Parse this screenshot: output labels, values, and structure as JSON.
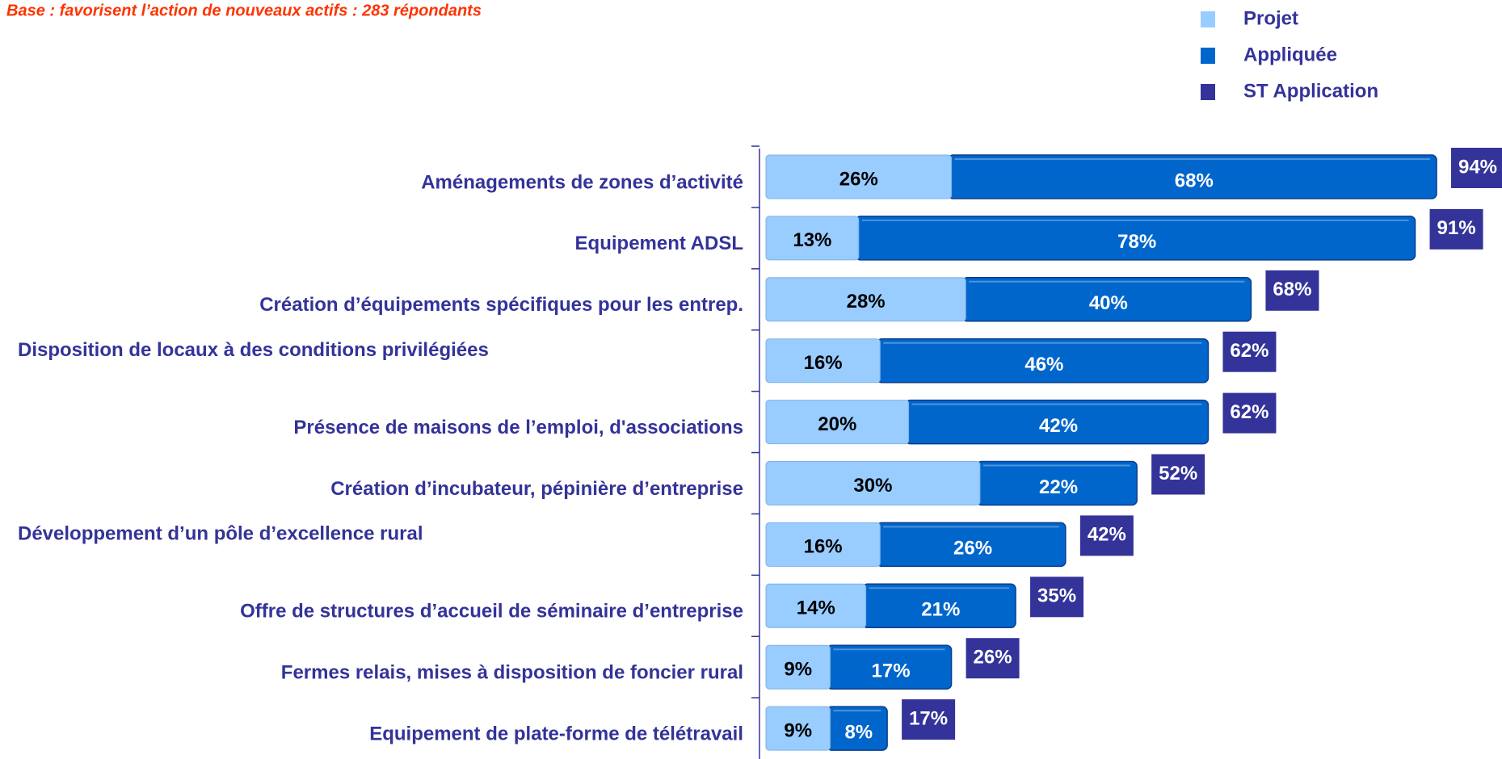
{
  "chart_data": {
    "type": "stacked-bar-horizontal",
    "subtitle": "Base : favorisent l’action de nouveaux actifs : 283 répondants",
    "categories": [
      "Aménagements de zones d’activité",
      "Equipement ADSL",
      "Création d’équipements spécifiques pour les entrep.",
      "Disposition de locaux à des conditions privilégiées",
      "Présence de maisons de l’emploi, d'associations",
      "Création d’incubateur, pépinière d’entreprise",
      "Développement d’un pôle d’excellence rural",
      "Offre de  structures d’accueil de séminaire d’entreprise",
      "Fermes relais, mises à disposition de foncier rural",
      "Equipement de plate-forme de télétravail"
    ],
    "series": [
      {
        "name": "Projet",
        "color": "#99ccff",
        "values": [
          26,
          13,
          28,
          16,
          20,
          30,
          16,
          14,
          9,
          9
        ],
        "value_labels": [
          "26%",
          "13%",
          "28%",
          "16%",
          "20%",
          "30%",
          "16%",
          "14%",
          "9%",
          "9%"
        ]
      },
      {
        "name": "Appliquée",
        "color": "#0066cc",
        "values": [
          68,
          78,
          40,
          46,
          42,
          22,
          26,
          21,
          17,
          8
        ],
        "value_labels": [
          "68%",
          "78%",
          "40%",
          "46%",
          "42%",
          "22%",
          "26%",
          "21%",
          "17%",
          "8%"
        ]
      },
      {
        "name": "ST Application",
        "color": "#333399",
        "values": [
          94,
          91,
          68,
          62,
          62,
          52,
          42,
          35,
          26,
          17
        ],
        "value_labels": [
          "94%",
          "91%",
          "68%",
          "62%",
          "62%",
          "52%",
          "42%",
          "35%",
          "26%",
          "17%"
        ]
      }
    ]
  }
}
